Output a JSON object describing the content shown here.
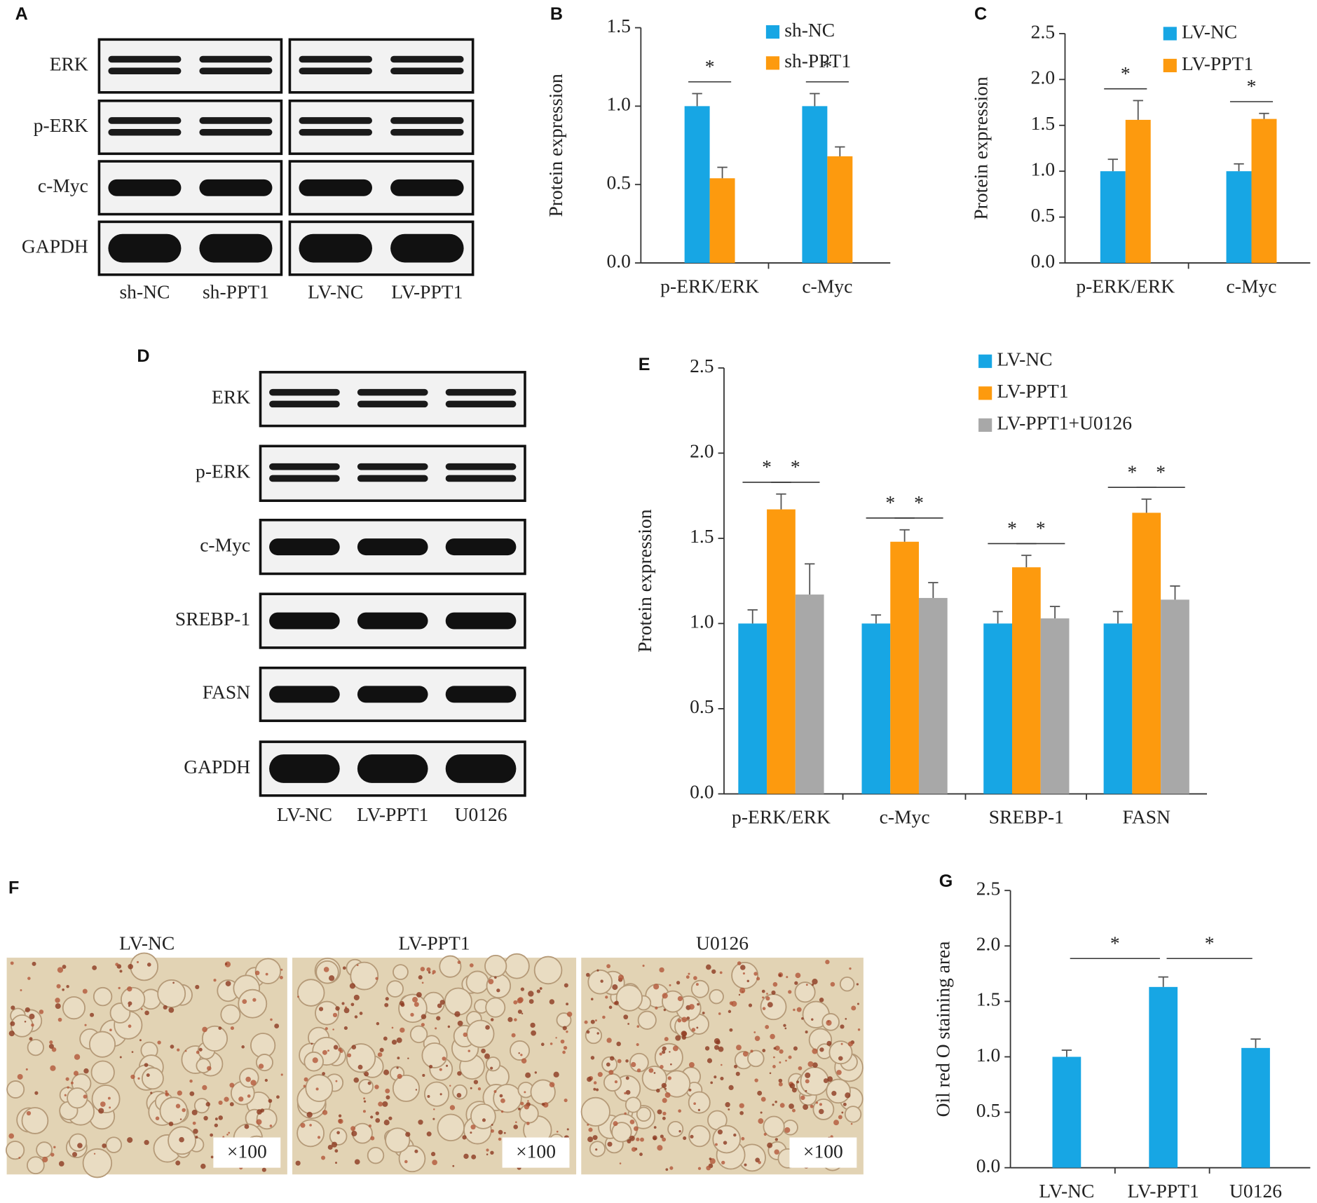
{
  "blots": [
    {
      "panel": "A",
      "rows": [
        "ERK",
        "p-ERK",
        "c-Myc",
        "GAPDH"
      ],
      "lanes": [
        "sh-NC",
        "sh-PPT1",
        "LV-NC",
        "LV-PPT1"
      ]
    },
    {
      "panel": "D",
      "rows": [
        "ERK",
        "p-ERK",
        "c-Myc",
        "SREBP-1",
        "FASN",
        "GAPDH"
      ],
      "lanes": [
        "LV-NC",
        "LV-PPT1",
        "U0126"
      ]
    }
  ],
  "micrographs": {
    "panel": "F",
    "images": [
      {
        "label": "LV-NC",
        "magnification": "×100"
      },
      {
        "label": "LV-PPT1",
        "magnification": "×100"
      },
      {
        "label": "U0126",
        "magnification": "×100"
      }
    ]
  },
  "chart_data": [
    {
      "type": "bar",
      "panel": "B",
      "y_label": "Protein expression",
      "categories": [
        "p-ERK/ERK",
        "c-Myc"
      ],
      "series": [
        {
          "name": "sh-NC",
          "color": "#17a6e4",
          "values": [
            1.0,
            1.0
          ],
          "errors": [
            0.08,
            0.08
          ]
        },
        {
          "name": "sh-PPT1",
          "color": "#fd9a0e",
          "values": [
            0.54,
            0.68
          ],
          "errors": [
            0.07,
            0.06
          ]
        }
      ],
      "ylim": [
        0,
        1.5
      ],
      "yticks": [
        {
          "value": 0,
          "label": "0.0"
        },
        0.5,
        {
          "value": 1,
          "label": "1.0"
        },
        1.5
      ],
      "significance": [
        {
          "category": 0,
          "series": [
            0,
            1
          ],
          "label": "*"
        },
        {
          "category": 1,
          "series": [
            0,
            1
          ],
          "label": "*"
        }
      ]
    },
    {
      "type": "bar",
      "panel": "C",
      "y_label": "Protein expression",
      "categories": [
        "p-ERK/ERK",
        "c-Myc"
      ],
      "series": [
        {
          "name": "LV-NC",
          "color": "#17a6e4",
          "values": [
            1.0,
            1.0
          ],
          "errors": [
            0.13,
            0.08
          ]
        },
        {
          "name": "LV-PPT1",
          "color": "#fd9a0e",
          "values": [
            1.56,
            1.57
          ],
          "errors": [
            0.21,
            0.06
          ]
        }
      ],
      "ylim": [
        0,
        2.5
      ],
      "yticks": [
        {
          "value": 0,
          "label": "0.0"
        },
        0.5,
        {
          "value": 1,
          "label": "1.0"
        },
        1.5,
        {
          "value": 2,
          "label": "2.0"
        },
        2.5
      ],
      "significance": [
        {
          "category": 0,
          "series": [
            0,
            1
          ],
          "label": "*"
        },
        {
          "category": 1,
          "series": [
            0,
            1
          ],
          "label": "*"
        }
      ]
    },
    {
      "type": "bar",
      "panel": "E",
      "y_label": "Protein expression",
      "categories": [
        "p-ERK/ERK",
        "c-Myc",
        "SREBP-1",
        "FASN"
      ],
      "series": [
        {
          "name": "LV-NC",
          "color": "#17a6e4",
          "values": [
            1.0,
            1.0,
            1.0,
            1.0
          ],
          "errors": [
            0.08,
            0.05,
            0.07,
            0.07
          ]
        },
        {
          "name": "LV-PPT1",
          "color": "#fd9a0e",
          "values": [
            1.67,
            1.48,
            1.33,
            1.65
          ],
          "errors": [
            0.09,
            0.07,
            0.07,
            0.08
          ]
        },
        {
          "name": "LV-PPT1+U0126",
          "color": "#a8a8a8",
          "values": [
            1.17,
            1.15,
            1.03,
            1.14
          ],
          "errors": [
            0.18,
            0.09,
            0.07,
            0.08
          ]
        }
      ],
      "ylim": [
        0,
        2.5
      ],
      "yticks": [
        {
          "value": 0,
          "label": "0.0"
        },
        0.5,
        {
          "value": 1,
          "label": "1.0"
        },
        1.5,
        {
          "value": 2,
          "label": "2.0"
        },
        2.5
      ],
      "significance": [
        {
          "category": 0,
          "series": [
            0,
            1
          ],
          "label": "*"
        },
        {
          "category": 0,
          "series": [
            1,
            2
          ],
          "label": "*"
        },
        {
          "category": 1,
          "series": [
            0,
            1
          ],
          "label": "*"
        },
        {
          "category": 1,
          "series": [
            1,
            2
          ],
          "label": "*"
        },
        {
          "category": 2,
          "series": [
            0,
            1
          ],
          "label": "*"
        },
        {
          "category": 2,
          "series": [
            1,
            2
          ],
          "label": "*"
        },
        {
          "category": 3,
          "series": [
            0,
            1
          ],
          "label": "*"
        },
        {
          "category": 3,
          "series": [
            1,
            2
          ],
          "label": "*"
        }
      ]
    },
    {
      "type": "bar",
      "panel": "G",
      "y_label": "Oil red O staining area",
      "categories": [
        "LV-NC",
        "LV-PPT1",
        "U0126"
      ],
      "color": "#17a6e4",
      "values": [
        1.0,
        1.63,
        1.08
      ],
      "errors": [
        0.06,
        0.09,
        0.08
      ],
      "ylim": [
        0,
        2.5
      ],
      "yticks": [
        {
          "value": 0,
          "label": "0.0"
        },
        0.5,
        {
          "value": 1,
          "label": "1.0"
        },
        1.5,
        {
          "value": 2,
          "label": "2.0"
        },
        2.5
      ],
      "significance": [
        {
          "categories": [
            0,
            1
          ],
          "label": "*"
        },
        {
          "categories": [
            1,
            2
          ],
          "label": "*"
        }
      ]
    }
  ]
}
